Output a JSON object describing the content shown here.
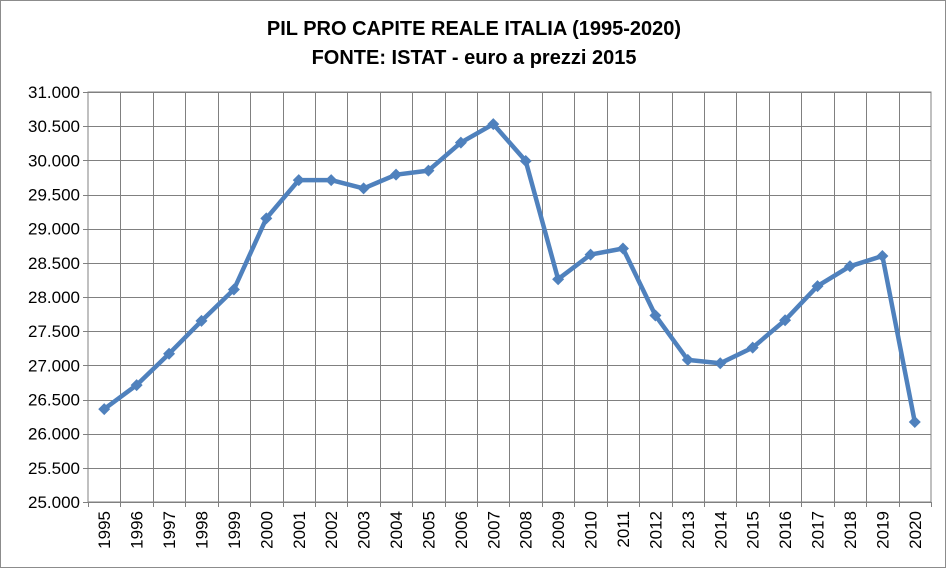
{
  "chart_data": {
    "type": "line",
    "title": "PIL PRO CAPITE REALE ITALIA (1995-2020)",
    "subtitle": "FONTE: ISTAT - euro a prezzi 2015",
    "xlabel": "",
    "ylabel": "",
    "categories": [
      "1995",
      "1996",
      "1997",
      "1998",
      "1999",
      "2000",
      "2001",
      "2002",
      "2003",
      "2004",
      "2005",
      "2006",
      "2007",
      "2008",
      "2009",
      "2010",
      "2011",
      "2012",
      "2013",
      "2014",
      "2015",
      "2016",
      "2017",
      "2018",
      "2019",
      "2020"
    ],
    "values": [
      26360,
      26710,
      27170,
      27650,
      28110,
      29150,
      29710,
      29710,
      29590,
      29790,
      29850,
      30260,
      30530,
      29990,
      28260,
      28620,
      28710,
      27730,
      27080,
      27030,
      27260,
      27660,
      28160,
      28450,
      28600,
      26170
    ],
    "ylim": [
      25000,
      31000
    ],
    "ytick_labels": [
      "25.000",
      "25.500",
      "26.000",
      "26.500",
      "27.000",
      "27.500",
      "28.000",
      "28.500",
      "29.000",
      "29.500",
      "30.000",
      "30.500",
      "31.000"
    ],
    "grid": true,
    "legend": "none",
    "line_color": "#4f81bd"
  }
}
